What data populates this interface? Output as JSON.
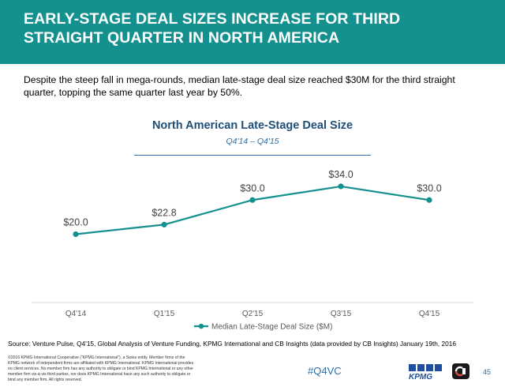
{
  "header": {
    "title_line1": "EARLY-STAGE DEAL SIZES INCREASE FOR THIRD",
    "title_line2": "STRAIGHT QUARTER IN NORTH AMERICA"
  },
  "intro_text": "Despite the steep fall in mega-rounds, median late-stage deal size reached $30M for the third straight quarter, topping the same quarter last year by 50%.",
  "colors": {
    "header_bg": "#14908f",
    "series": "#14908f",
    "title": "#1f4e79",
    "accent": "#2e6da4"
  },
  "chart_data": {
    "type": "line",
    "title": "North American Late-Stage Deal Size",
    "subtitle": "Q4'14 – Q4'15",
    "categories": [
      "Q4'14",
      "Q1'15",
      "Q2'15",
      "Q3'15",
      "Q4'15"
    ],
    "series": [
      {
        "name": "Median Late-Stage Deal Size ($M)",
        "values": [
          20.0,
          22.8,
          30.0,
          34.0,
          30.0
        ],
        "labels": [
          "$20.0",
          "$22.8",
          "$30.0",
          "$34.0",
          "$30.0"
        ]
      }
    ],
    "ylim": [
      0,
      40
    ],
    "y_axis_visible": false,
    "grid": false,
    "legend_position": "bottom"
  },
  "source_text": "Source: Venture Pulse, Q4'15, Global Analysis of Venture Funding, KPMG International and CB Insights (data provided by CB Insights) January 19th, 2016",
  "copyright_text": "©2016 KPMG International Cooperative (\"KPMG International\"), a Swiss entity. Member firms of the KPMG network of independent firms are affiliated with KPMG International. KPMG International provides no client services. No member firm has any authority to obligate or bind KPMG International or any other member firm vis-à-vis third parties, nor does KPMG International have any such authority to obligate or bind any member firm. All rights reserved.",
  "hashtag": "#Q4VC",
  "logos": {
    "kpmg_text": "KPMG",
    "kpmg_icon": "kpmg-logo",
    "cb_icon": "cb-insights-logo"
  },
  "page_number": "45"
}
